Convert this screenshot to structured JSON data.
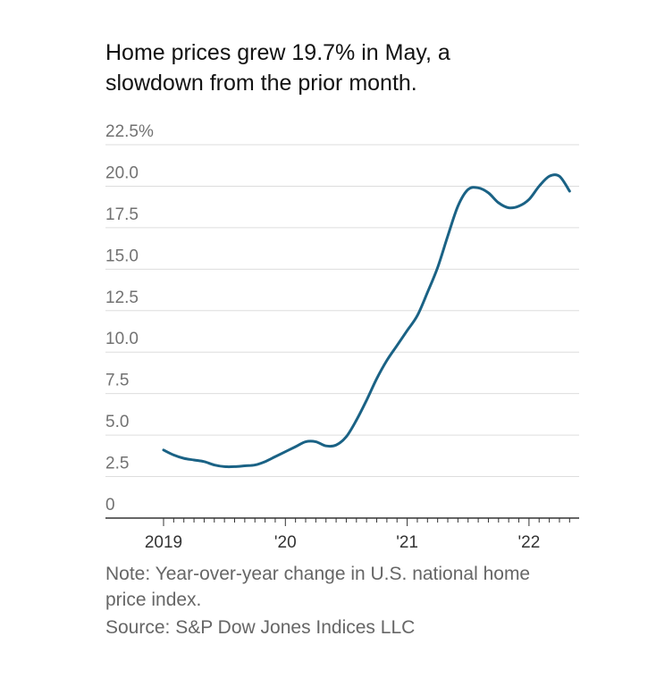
{
  "header": {
    "title_line1": "Home prices grew 19.7% in May, a",
    "title_line2": "slowdown from the prior month."
  },
  "footer": {
    "note_line1": "Note: Year-over-year change in U.S. national home",
    "note_line2": "price index.",
    "source": "Source: S&P Dow Jones Indices LLC"
  },
  "colors": {
    "line": "#1a6285",
    "grid": "#dddddd",
    "axis": "#333333"
  },
  "chart_data": {
    "type": "line",
    "title": "Home prices grew 19.7% in May, a slowdown from the prior month.",
    "xlabel": "",
    "ylabel": "",
    "ylim": [
      0,
      22.5
    ],
    "grid": true,
    "y_ticks": [
      {
        "value": 22.5,
        "label": "22.5%"
      },
      {
        "value": 20,
        "label": "20.0"
      },
      {
        "value": 17.5,
        "label": "17.5"
      },
      {
        "value": 15,
        "label": "15.0"
      },
      {
        "value": 12.5,
        "label": "12.5"
      },
      {
        "value": 10,
        "label": "10.0"
      },
      {
        "value": 7.5,
        "label": "7.5"
      },
      {
        "value": 5,
        "label": "5.0"
      },
      {
        "value": 2.5,
        "label": "2.5"
      },
      {
        "value": 0,
        "label": "0"
      }
    ],
    "x_ticks": [
      {
        "month_index": 0,
        "label": "2019"
      },
      {
        "month_index": 12,
        "label": "'20"
      },
      {
        "month_index": 24,
        "label": "'21"
      },
      {
        "month_index": 36,
        "label": "'22"
      }
    ],
    "x_range_months": [
      0,
      40.5
    ],
    "series": [
      {
        "name": "Year-over-year change in U.S. national home price index",
        "start": "2019-01",
        "values": [
          4.1,
          3.8,
          3.6,
          3.5,
          3.4,
          3.2,
          3.1,
          3.1,
          3.15,
          3.2,
          3.4,
          3.7,
          4.0,
          4.3,
          4.6,
          4.6,
          4.35,
          4.4,
          4.9,
          5.9,
          7.1,
          8.4,
          9.5,
          10.4,
          11.3,
          12.2,
          13.6,
          15.1,
          17.0,
          18.8,
          19.8,
          19.9,
          19.6,
          19.0,
          18.7,
          18.8,
          19.2,
          20.0,
          20.6,
          20.6,
          19.7
        ]
      }
    ]
  }
}
